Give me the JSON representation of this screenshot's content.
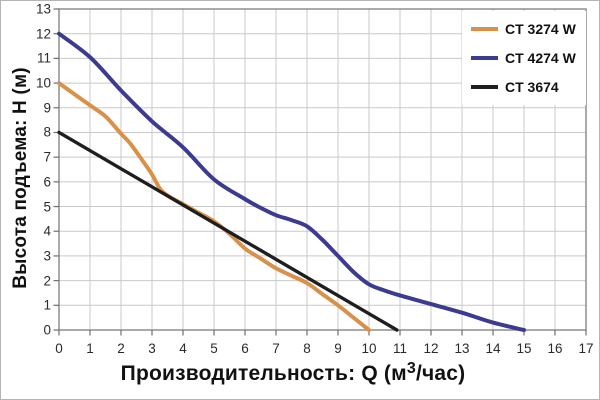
{
  "chart_data": {
    "type": "line",
    "title": "",
    "xlabel_prefix": "Производительность: Q (м",
    "xlabel_sup": "3",
    "xlabel_suffix": "/час)",
    "ylabel": "Высота подъема: H (м)",
    "xlim": [
      0,
      17
    ],
    "ylim": [
      0,
      13
    ],
    "x_ticks": [
      0,
      1,
      2,
      3,
      4,
      5,
      6,
      7,
      8,
      9,
      10,
      11,
      12,
      13,
      14,
      15,
      16,
      17
    ],
    "y_ticks": [
      0,
      1,
      2,
      3,
      4,
      5,
      6,
      7,
      8,
      9,
      10,
      11,
      12,
      13
    ],
    "grid": true,
    "legend_position": "top-right",
    "colors": {
      "grid": "#c9c9c9",
      "plot_border": "#8d8d8d",
      "tick": "#6f6f6f",
      "text": "#111111"
    },
    "series": [
      {
        "name": "CT 3274 W",
        "color": "#d8914a",
        "points": [
          [
            0,
            10
          ],
          [
            0.5,
            9.55
          ],
          [
            1,
            9.1
          ],
          [
            1.5,
            8.65
          ],
          [
            2,
            7.95
          ],
          [
            2.3,
            7.55
          ],
          [
            2.7,
            6.85
          ],
          [
            3,
            6.3
          ],
          [
            3.3,
            5.65
          ],
          [
            3.7,
            5.3
          ],
          [
            4,
            5.1
          ],
          [
            4.5,
            4.75
          ],
          [
            5,
            4.4
          ],
          [
            5.5,
            3.9
          ],
          [
            6,
            3.3
          ],
          [
            6.5,
            2.9
          ],
          [
            7,
            2.5
          ],
          [
            7.5,
            2.2
          ],
          [
            8,
            1.9
          ],
          [
            8.5,
            1.45
          ],
          [
            9,
            1.0
          ],
          [
            9.5,
            0.5
          ],
          [
            10,
            0
          ]
        ]
      },
      {
        "name": "CT 4274 W",
        "color": "#3c3b8f",
        "points": [
          [
            0,
            12
          ],
          [
            1,
            11.05
          ],
          [
            2,
            9.7
          ],
          [
            3,
            8.45
          ],
          [
            4,
            7.4
          ],
          [
            5,
            6.1
          ],
          [
            6,
            5.3
          ],
          [
            6.5,
            4.95
          ],
          [
            7,
            4.65
          ],
          [
            7.5,
            4.45
          ],
          [
            8,
            4.2
          ],
          [
            8.5,
            3.65
          ],
          [
            9,
            3.0
          ],
          [
            9.5,
            2.35
          ],
          [
            10,
            1.85
          ],
          [
            10.5,
            1.6
          ],
          [
            11,
            1.4
          ],
          [
            12,
            1.05
          ],
          [
            13,
            0.7
          ],
          [
            14,
            0.3
          ],
          [
            15,
            0
          ]
        ]
      },
      {
        "name": "CT 3674",
        "color": "#1e1e1e",
        "points": [
          [
            0,
            8
          ],
          [
            10.9,
            0
          ]
        ]
      }
    ]
  }
}
